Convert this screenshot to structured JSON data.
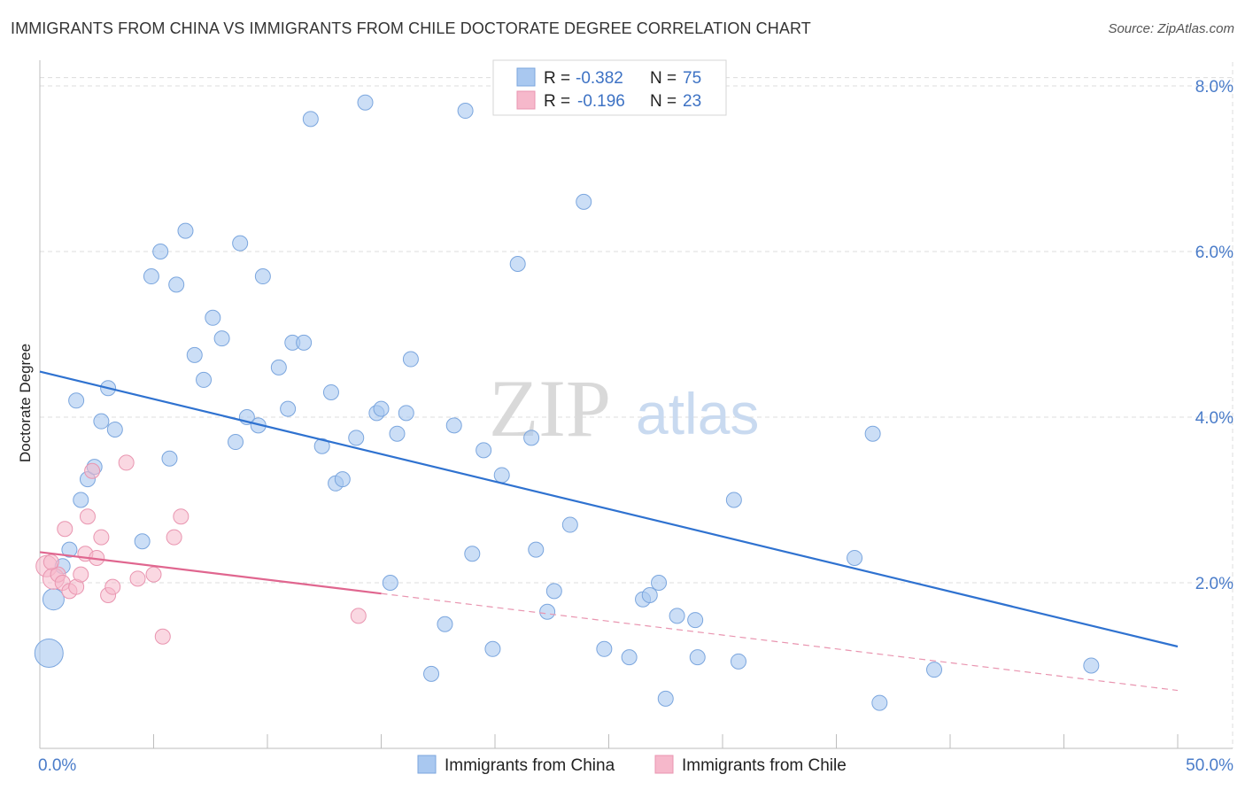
{
  "title": "IMMIGRANTS FROM CHINA VS IMMIGRANTS FROM CHILE DOCTORATE DEGREE CORRELATION CHART",
  "source": "Source: ZipAtlas.com",
  "watermark": {
    "zip": "ZIP",
    "atlas": "atlas"
  },
  "legend": {
    "r_label": "R =",
    "n_label": "N =",
    "rows": [
      {
        "r": "-0.382",
        "n": "75",
        "color": "#a9c8f0"
      },
      {
        "r": "-0.196",
        "n": "23",
        "color": "#f6b8cb"
      }
    ]
  },
  "chart_data": {
    "type": "scatter",
    "title": "IMMIGRANTS FROM CHINA VS IMMIGRANTS FROM CHILE DOCTORATE DEGREE CORRELATION CHART",
    "xlabel": "",
    "ylabel": "Doctorate Degree",
    "xlim": [
      0,
      50
    ],
    "ylim": [
      0,
      8.3
    ],
    "x_tick_labels": [
      "0.0%",
      "50.0%"
    ],
    "y_ticks": [
      2,
      4,
      6,
      8
    ],
    "y_tick_labels": [
      "2.0%",
      "4.0%",
      "6.0%",
      "8.0%"
    ],
    "grid": true,
    "legend_position": "top-center",
    "series": [
      {
        "name": "Immigrants from China",
        "color": "#a9c8f0",
        "edge_color": "#7ba6de",
        "r": -0.382,
        "n": 75,
        "trend": {
          "x": [
            0,
            50
          ],
          "y": [
            4.55,
            1.23
          ]
        },
        "points": [
          [
            0.4,
            1.15,
            3
          ],
          [
            0.6,
            1.8,
            2
          ],
          [
            1.0,
            2.2,
            1
          ],
          [
            1.3,
            2.4,
            1
          ],
          [
            1.6,
            4.2,
            1
          ],
          [
            1.8,
            3.0,
            1
          ],
          [
            2.1,
            3.25,
            1
          ],
          [
            2.4,
            3.4,
            1
          ],
          [
            2.7,
            3.95,
            1
          ],
          [
            3.0,
            4.35,
            1
          ],
          [
            3.3,
            3.85,
            1
          ],
          [
            4.5,
            2.5,
            1
          ],
          [
            4.9,
            5.7,
            1
          ],
          [
            5.3,
            6.0,
            1
          ],
          [
            5.7,
            3.5,
            1
          ],
          [
            6.0,
            5.6,
            1
          ],
          [
            6.4,
            6.25,
            1
          ],
          [
            6.8,
            4.75,
            1
          ],
          [
            7.2,
            4.45,
            1
          ],
          [
            7.6,
            5.2,
            1
          ],
          [
            8.0,
            4.95,
            1
          ],
          [
            8.6,
            3.7,
            1
          ],
          [
            8.8,
            6.1,
            1
          ],
          [
            9.1,
            4.0,
            1
          ],
          [
            9.6,
            3.9,
            1
          ],
          [
            9.8,
            5.7,
            1
          ],
          [
            10.5,
            4.6,
            1
          ],
          [
            10.9,
            4.1,
            1
          ],
          [
            11.1,
            4.9,
            1
          ],
          [
            11.6,
            4.9,
            1
          ],
          [
            11.9,
            7.6,
            1
          ],
          [
            12.4,
            3.65,
            1
          ],
          [
            12.8,
            4.3,
            1
          ],
          [
            13.0,
            3.2,
            1
          ],
          [
            13.3,
            3.25,
            1
          ],
          [
            13.9,
            3.75,
            1
          ],
          [
            14.3,
            7.8,
            1
          ],
          [
            14.8,
            4.05,
            1
          ],
          [
            15.0,
            4.1,
            1
          ],
          [
            15.4,
            2.0,
            1
          ],
          [
            15.7,
            3.8,
            1
          ],
          [
            16.1,
            4.05,
            1
          ],
          [
            16.3,
            4.7,
            1
          ],
          [
            17.2,
            0.9,
            1
          ],
          [
            17.8,
            1.5,
            1
          ],
          [
            18.2,
            3.9,
            1
          ],
          [
            18.7,
            7.7,
            1
          ],
          [
            19.0,
            2.35,
            1
          ],
          [
            19.5,
            3.6,
            1
          ],
          [
            19.9,
            1.2,
            1
          ],
          [
            20.3,
            3.3,
            1
          ],
          [
            21.0,
            5.85,
            1
          ],
          [
            21.6,
            3.75,
            1
          ],
          [
            21.8,
            2.4,
            1
          ],
          [
            22.3,
            1.65,
            1
          ],
          [
            22.6,
            1.9,
            1
          ],
          [
            23.3,
            2.7,
            1
          ],
          [
            23.9,
            6.6,
            1
          ],
          [
            24.8,
            1.2,
            1
          ],
          [
            25.9,
            1.1,
            1
          ],
          [
            26.5,
            1.8,
            1
          ],
          [
            26.8,
            1.85,
            1
          ],
          [
            27.2,
            2.0,
            1
          ],
          [
            27.5,
            0.6,
            1
          ],
          [
            28.0,
            1.6,
            1
          ],
          [
            28.8,
            1.55,
            1
          ],
          [
            28.9,
            1.1,
            1
          ],
          [
            29.0,
            7.9,
            1
          ],
          [
            30.5,
            3.0,
            1
          ],
          [
            30.7,
            1.05,
            1
          ],
          [
            35.8,
            2.3,
            1
          ],
          [
            36.6,
            3.8,
            1
          ],
          [
            36.9,
            0.55,
            1
          ],
          [
            39.3,
            0.95,
            1
          ],
          [
            46.2,
            1.0,
            1
          ]
        ]
      },
      {
        "name": "Immigrants from Chile",
        "color": "#f6b8cb",
        "edge_color": "#e995b0",
        "r": -0.196,
        "n": 23,
        "trend": {
          "x": [
            0,
            15
          ],
          "y": [
            2.37,
            1.87
          ]
        },
        "trend_extension": {
          "x": [
            15,
            50
          ],
          "y": [
            1.87,
            0.7
          ]
        },
        "points": [
          [
            0.3,
            2.2,
            2
          ],
          [
            0.6,
            2.05,
            2
          ],
          [
            0.8,
            2.1,
            1
          ],
          [
            1.0,
            2.0,
            1
          ],
          [
            1.1,
            2.65,
            1
          ],
          [
            1.3,
            1.9,
            1
          ],
          [
            1.6,
            1.95,
            1
          ],
          [
            1.8,
            2.1,
            1
          ],
          [
            2.0,
            2.35,
            1
          ],
          [
            2.1,
            2.8,
            1
          ],
          [
            2.3,
            3.35,
            1
          ],
          [
            2.5,
            2.3,
            1
          ],
          [
            2.7,
            2.55,
            1
          ],
          [
            3.0,
            1.85,
            1
          ],
          [
            3.2,
            1.95,
            1
          ],
          [
            3.8,
            3.45,
            1
          ],
          [
            4.3,
            2.05,
            1
          ],
          [
            5.0,
            2.1,
            1
          ],
          [
            5.4,
            1.35,
            1
          ],
          [
            5.9,
            2.55,
            1
          ],
          [
            6.2,
            2.8,
            1
          ],
          [
            14.0,
            1.6,
            1
          ],
          [
            0.5,
            2.25,
            1
          ]
        ]
      }
    ]
  }
}
